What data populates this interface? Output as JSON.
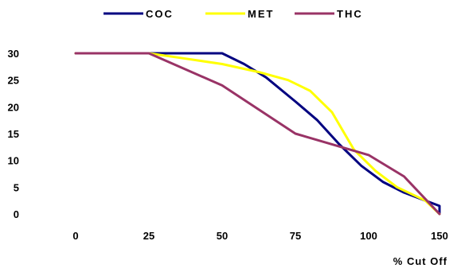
{
  "chart_data": {
    "type": "line",
    "categories": [
      "0",
      "25",
      "50",
      "75",
      "100",
      "150"
    ],
    "xlabel": "% Cut Off",
    "ylabel": "",
    "ylim": [
      0,
      30
    ],
    "yticks": [
      0,
      5,
      10,
      15,
      20,
      25,
      30
    ],
    "grid": false,
    "legend_position": "top",
    "series": [
      {
        "name": "COC",
        "color": "#000080",
        "points": [
          [
            0,
            30
          ],
          [
            0.5,
            30
          ],
          [
            1,
            30
          ],
          [
            1.5,
            30
          ],
          [
            2,
            30
          ],
          [
            2.3,
            28
          ],
          [
            2.6,
            25.5
          ],
          [
            3,
            21
          ],
          [
            3.3,
            17.5
          ],
          [
            3.6,
            13
          ],
          [
            3.9,
            9
          ],
          [
            4.2,
            6
          ],
          [
            4.5,
            4
          ],
          [
            5,
            1.5
          ],
          [
            5.4,
            0
          ]
        ]
      },
      {
        "name": "MET",
        "color": "#ffff00",
        "points": [
          [
            0,
            30
          ],
          [
            0.5,
            30
          ],
          [
            1,
            30
          ],
          [
            1.5,
            29
          ],
          [
            2,
            28
          ],
          [
            2.5,
            26.5
          ],
          [
            2.9,
            25
          ],
          [
            3.2,
            23
          ],
          [
            3.5,
            19
          ],
          [
            3.8,
            12
          ],
          [
            4.1,
            8
          ],
          [
            4.4,
            5
          ],
          [
            4.8,
            2.5
          ],
          [
            5.4,
            0
          ]
        ]
      },
      {
        "name": "THC",
        "color": "#993366",
        "points": [
          [
            0,
            30
          ],
          [
            0.5,
            30
          ],
          [
            1,
            30
          ],
          [
            2,
            24
          ],
          [
            3,
            15
          ],
          [
            4,
            11
          ],
          [
            4.5,
            7
          ],
          [
            5.4,
            0
          ]
        ]
      }
    ]
  }
}
